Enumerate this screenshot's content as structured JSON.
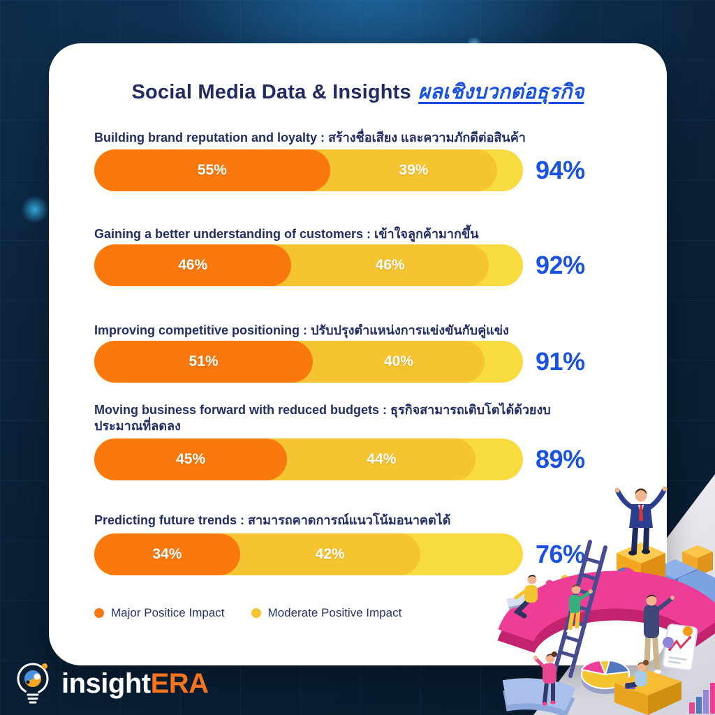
{
  "title": {
    "en": "Social Media Data & Insights",
    "th": "ผลเชิงบวกต่อธุรกิจ"
  },
  "chart_data": {
    "type": "bar",
    "orientation": "horizontal",
    "stacked": true,
    "xlim": [
      0,
      100
    ],
    "categories": [
      "Building brand reputation and loyalty : สร้างชื่อเสียง และความภักดีต่อสินค้า",
      "Gaining a better understanding of customers : เข้าใจลูกค้ามากขึ้น",
      "Improving competitive positioning : ปรับปรุงตำแหน่งการแข่งขันกับคู่แข่ง",
      "Moving business forward with reduced budgets : ธุรกิจสามารถเติบโตได้ด้วยงบประมาณที่ลดลง",
      "Predicting future trends : สามารถคาดการณ์แนวโน้มอนาคตได้"
    ],
    "series": [
      {
        "name": "Major Positice Impact",
        "color": "#f9790e",
        "values": [
          55,
          46,
          51,
          45,
          34
        ]
      },
      {
        "name": "Moderate Positive Impact",
        "color": "#f5c531",
        "values": [
          39,
          46,
          40,
          44,
          42
        ]
      }
    ],
    "totals": [
      94,
      92,
      91,
      89,
      76
    ],
    "track_color": "#f8dc3f",
    "total_color": "#1a52e0"
  },
  "rows": [
    {
      "label": "Building brand reputation and loyalty : สร้างชื่อเสียง และความภักดีต่อสินค้า",
      "major": "55%",
      "moderate": "39%",
      "total": "94%"
    },
    {
      "label": "Gaining a better understanding of customers : เข้าใจลูกค้ามากขึ้น",
      "major": "46%",
      "moderate": "46%",
      "total": "92%"
    },
    {
      "label": "Improving competitive positioning : ปรับปรุงตำแหน่งการแข่งขันกับคู่แข่ง",
      "major": "51%",
      "moderate": "40%",
      "total": "91%"
    },
    {
      "label": "Moving business forward with reduced budgets : ธุรกิจสามารถเติบโตได้ด้วย​งบประมาณที่ลดลง",
      "major": "45%",
      "moderate": "44%",
      "total": "89%"
    },
    {
      "label": "Predicting future trends : สามารถคาดการณ์แนวโน้มอนาคตได้",
      "major": "34%",
      "moderate": "42%",
      "total": "76%"
    }
  ],
  "logo": {
    "part1": "insight",
    "part2": "ERA"
  },
  "colors": {
    "background_navy": "#081d33",
    "card": "#ffffff",
    "heading_navy": "#222b5f",
    "accent_blue": "#1a52e0",
    "logo_orange": "#f5731e"
  }
}
